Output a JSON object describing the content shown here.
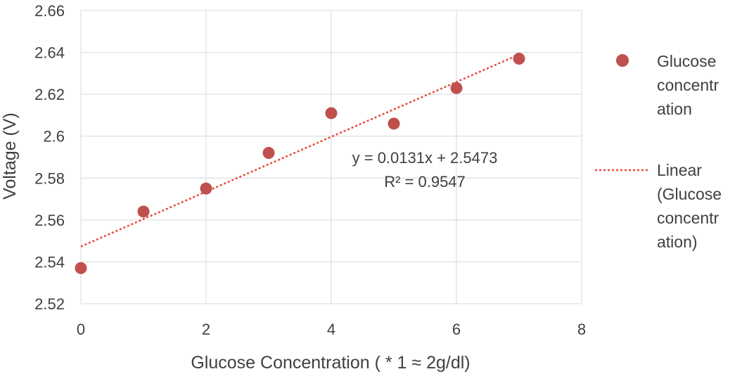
{
  "chart_data": {
    "type": "scatter",
    "xlabel": "Glucose Concentration ( * 1 ≈ 2g/dl)",
    "ylabel": "Voltage (V)",
    "xlim": [
      0,
      8
    ],
    "ylim": [
      2.52,
      2.66
    ],
    "x_ticks": [
      "0",
      "2",
      "4",
      "6",
      "8"
    ],
    "y_ticks": [
      "2.52",
      "2.54",
      "2.56",
      "2.58",
      "2.6",
      "2.62",
      "2.64",
      "2.66"
    ],
    "grid": true,
    "legend_position": "right",
    "series": [
      {
        "name": "Glucose concentration",
        "legend_lines": [
          "Glucose",
          "concentr",
          "ation"
        ],
        "color": "#c0504d",
        "x": [
          0,
          1,
          2,
          3,
          4,
          5,
          6,
          7
        ],
        "y": [
          2.537,
          2.564,
          2.575,
          2.592,
          2.611,
          2.606,
          2.623,
          2.637
        ]
      }
    ],
    "trendline": {
      "name": "Linear (Glucose concentration)",
      "legend_lines": [
        "Linear",
        "(Glucose",
        "concentr",
        "ation)"
      ],
      "type": "linear",
      "slope": 0.0131,
      "intercept": 2.5473,
      "x_range": [
        0,
        7
      ],
      "color": "#e8483b",
      "equation": "y = 0.0131x + 2.5473",
      "r_squared": "R² = 0.9547"
    }
  }
}
